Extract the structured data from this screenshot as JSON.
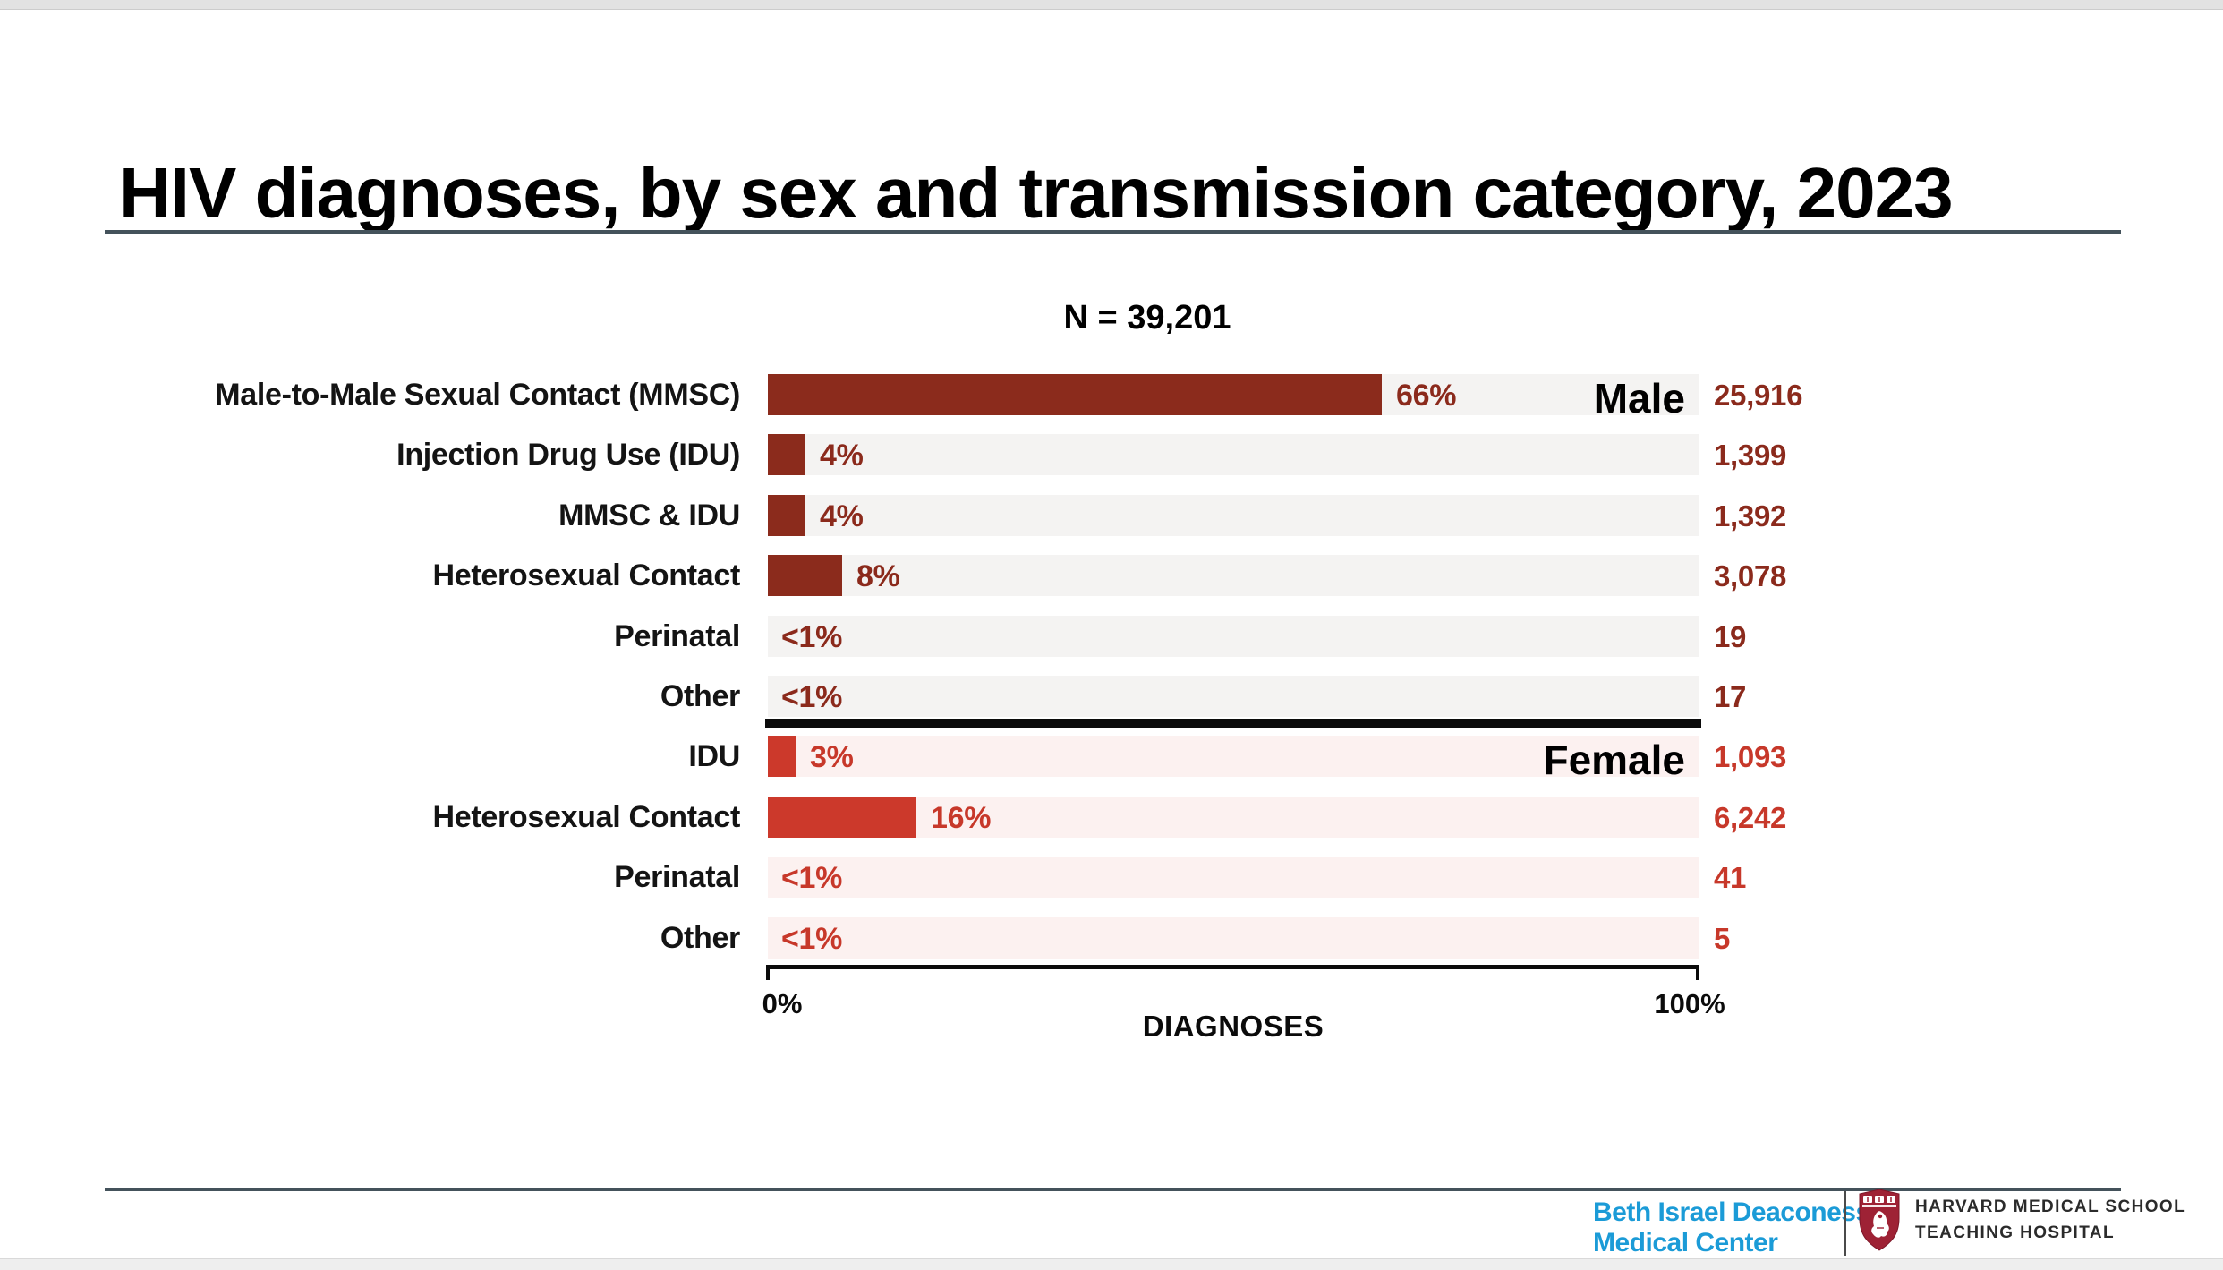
{
  "slide": {
    "title": "HIV diagnoses, by sex and transmission category, 2023"
  },
  "chart_data": {
    "type": "bar",
    "orientation": "horizontal",
    "title": "N = 39,201",
    "xlabel": "DIAGNOSES",
    "x_axis": {
      "min_label": "0%",
      "max_label": "100%",
      "range": [
        0,
        100
      ]
    },
    "grid": false,
    "groups": [
      {
        "name": "Male",
        "bar_color": "#8b2b1c",
        "track_color": "#f4f3f2",
        "text_color": "#8b2a1c",
        "rows": [
          {
            "category": "Male-to-Male Sexual Contact (MMSC)",
            "percent_label": "66%",
            "percent_value": 66,
            "count": "25,916"
          },
          {
            "category": "Injection Drug Use (IDU)",
            "percent_label": "4%",
            "percent_value": 4,
            "count": "1,399"
          },
          {
            "category": "MMSC & IDU",
            "percent_label": "4%",
            "percent_value": 4,
            "count": "1,392"
          },
          {
            "category": "Heterosexual Contact",
            "percent_label": "8%",
            "percent_value": 8,
            "count": "3,078"
          },
          {
            "category": "Perinatal",
            "percent_label": "<1%",
            "percent_value": 0,
            "count": "19"
          },
          {
            "category": "Other",
            "percent_label": "<1%",
            "percent_value": 0,
            "count": "17"
          }
        ]
      },
      {
        "name": "Female",
        "bar_color": "#cc392b",
        "track_color": "#fcf1f0",
        "text_color": "#c7382a",
        "rows": [
          {
            "category": "IDU",
            "percent_label": "3%",
            "percent_value": 3,
            "count": "1,093"
          },
          {
            "category": "Heterosexual Contact",
            "percent_label": "16%",
            "percent_value": 16,
            "count": "6,242"
          },
          {
            "category": "Perinatal",
            "percent_label": "<1%",
            "percent_value": 0,
            "count": "41"
          },
          {
            "category": "Other",
            "percent_label": "<1%",
            "percent_value": 0,
            "count": "5"
          }
        ]
      }
    ]
  },
  "footer": {
    "bidmc": {
      "line1": "Beth Israel Deaconess",
      "line2": "Medical Center",
      "color": "#1b9bd7"
    },
    "hms": {
      "line1": "HARVARD MEDICAL SCHOOL",
      "line2": "TEACHING HOSPITAL",
      "shield_icon": "harvard-shield-icon",
      "crimson": "#9e2235"
    }
  },
  "colors": {
    "rule": "#44525b",
    "divider": "#0b0b0b",
    "male_bar": "#8b2b1c",
    "female_bar": "#cc392b"
  }
}
